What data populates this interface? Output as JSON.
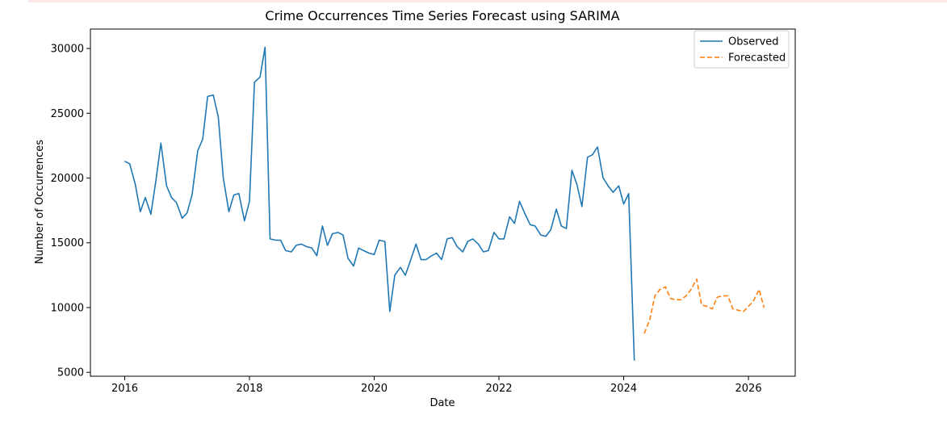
{
  "chart_data": {
    "type": "line",
    "title": "Crime Occurrences Time Series Forecast using SARIMA",
    "xlabel": "Date",
    "ylabel": "Number of Occurrences",
    "xlim": [
      2015.45,
      2026.75
    ],
    "ylim": [
      4700,
      31500
    ],
    "xticks": [
      2016,
      2018,
      2020,
      2022,
      2024,
      2026
    ],
    "yticks": [
      5000,
      10000,
      15000,
      20000,
      25000,
      30000
    ],
    "grid": false,
    "legend_position": "top-right",
    "series": [
      {
        "name": "Observed",
        "color": "#1f77b4",
        "linestyle": "solid",
        "x": [
          2016.0,
          2016.08,
          2016.17,
          2016.25,
          2016.33,
          2016.42,
          2016.5,
          2016.58,
          2016.67,
          2016.75,
          2016.83,
          2016.92,
          2017.0,
          2017.08,
          2017.17,
          2017.25,
          2017.33,
          2017.42,
          2017.5,
          2017.58,
          2017.67,
          2017.75,
          2017.83,
          2017.92,
          2018.0,
          2018.08,
          2018.17,
          2018.25,
          2018.33,
          2018.42,
          2018.5,
          2018.58,
          2018.67,
          2018.75,
          2018.83,
          2018.92,
          2019.0,
          2019.08,
          2019.17,
          2019.25,
          2019.33,
          2019.42,
          2019.5,
          2019.58,
          2019.67,
          2019.75,
          2019.83,
          2019.92,
          2020.0,
          2020.08,
          2020.17,
          2020.25,
          2020.33,
          2020.42,
          2020.5,
          2020.58,
          2020.67,
          2020.75,
          2020.83,
          2020.92,
          2021.0,
          2021.08,
          2021.17,
          2021.25,
          2021.33,
          2021.42,
          2021.5,
          2021.58,
          2021.67,
          2021.75,
          2021.83,
          2021.92,
          2022.0,
          2022.08,
          2022.17,
          2022.25,
          2022.33,
          2022.42,
          2022.5,
          2022.58,
          2022.67,
          2022.75,
          2022.83,
          2022.92,
          2023.0,
          2023.08,
          2023.17,
          2023.25,
          2023.33,
          2023.42,
          2023.5,
          2023.58,
          2023.67,
          2023.75,
          2023.83,
          2023.92,
          2024.0,
          2024.08,
          2024.17
        ],
        "y": [
          21300,
          21100,
          19500,
          17400,
          18500,
          17200,
          19800,
          22700,
          19400,
          18500,
          18100,
          16900,
          17300,
          18700,
          22100,
          23000,
          26300,
          26400,
          24700,
          20000,
          17400,
          18700,
          18800,
          16700,
          18200,
          27400,
          27800,
          30100,
          15300,
          15200,
          15200,
          14400,
          14300,
          14800,
          14900,
          14700,
          14600,
          14000,
          16300,
          14800,
          15700,
          15800,
          15600,
          13800,
          13200,
          14600,
          14400,
          14200,
          14100,
          15200,
          15100,
          9700,
          12500,
          13100,
          12500,
          13600,
          14900,
          13700,
          13700,
          14000,
          14200,
          13700,
          15300,
          15400,
          14700,
          14300,
          15100,
          15300,
          14900,
          14300,
          14400,
          15800,
          15300,
          15300,
          17000,
          16500,
          18200,
          17200,
          16400,
          16300,
          15600,
          15500,
          16000,
          17600,
          16300,
          16100,
          20600,
          19500,
          17800,
          21600,
          21800,
          22400,
          20000,
          19400,
          18900,
          19400,
          18000,
          18800,
          5900
        ]
      },
      {
        "name": "Forecasted",
        "color": "#ff7f0e",
        "linestyle": "dashed",
        "x": [
          2024.33,
          2024.42,
          2024.5,
          2024.58,
          2024.67,
          2024.75,
          2024.83,
          2024.92,
          2025.0,
          2025.08,
          2025.17,
          2025.25,
          2025.33,
          2025.42,
          2025.5,
          2025.58,
          2025.67,
          2025.75,
          2025.83,
          2025.92,
          2026.0,
          2026.08,
          2026.17,
          2026.25
        ],
        "y": [
          8000,
          9100,
          10900,
          11400,
          11600,
          10700,
          10600,
          10600,
          10900,
          11400,
          12200,
          10200,
          10100,
          9900,
          10800,
          10900,
          10900,
          9900,
          9800,
          9700,
          10100,
          10500,
          11400,
          10000
        ]
      }
    ]
  }
}
